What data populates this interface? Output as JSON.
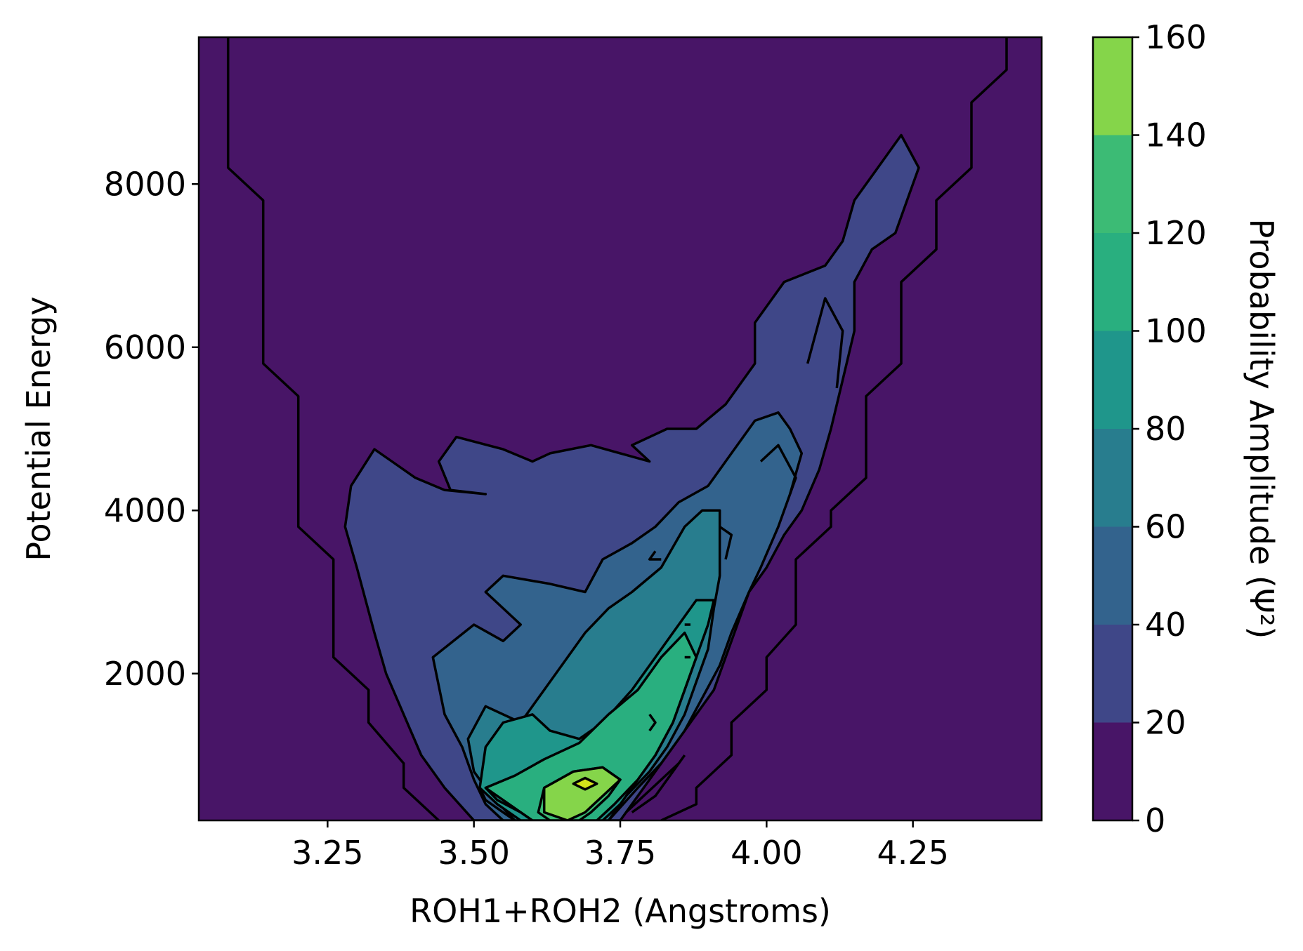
{
  "chart_data": {
    "type": "contourf",
    "title": "",
    "xlabel": "ROH1+ROH2 (Angstroms)",
    "ylabel": "Potential Energy",
    "xlim": [
      3.03,
      4.47
    ],
    "ylim": [
      200,
      9800
    ],
    "x_ticks": [
      3.25,
      3.5,
      3.75,
      4.0,
      4.25
    ],
    "x_tick_labels": [
      "3.25",
      "3.50",
      "3.75",
      "4.00",
      "4.25"
    ],
    "y_ticks": [
      2000,
      4000,
      6000,
      8000
    ],
    "y_tick_labels": [
      "2000",
      "4000",
      "6000",
      "8000"
    ],
    "colorbar": {
      "label": "Probability Amplitude (Ψ²)",
      "levels": [
        0,
        20,
        40,
        60,
        80,
        100,
        120,
        140,
        160
      ],
      "tick_labels": [
        "0",
        "20",
        "40",
        "60",
        "80",
        "100",
        "120",
        "140",
        "160"
      ],
      "colors": [
        "#481567",
        "#3f4788",
        "#33638d",
        "#287d8e",
        "#1f968b",
        "#29af7f",
        "#3cbb75",
        "#85d54a",
        "#d4e21a"
      ]
    },
    "contour_regions": [
      {
        "level": 0,
        "color": "#481567",
        "polygons": [
          [
            [
              3.03,
              200
            ],
            [
              4.47,
              200
            ],
            [
              4.47,
              9800
            ],
            [
              3.03,
              9800
            ]
          ]
        ]
      },
      {
        "level": 20,
        "color": "#3f4788",
        "polygons": [
          [
            [
              3.33,
              4750
            ],
            [
              3.36,
              4600
            ],
            [
              3.4,
              4400
            ],
            [
              3.45,
              4250
            ],
            [
              3.52,
              4200
            ],
            [
              3.46,
              4250
            ],
            [
              3.44,
              4600
            ],
            [
              3.47,
              4900
            ],
            [
              3.55,
              4750
            ],
            [
              3.6,
              4600
            ],
            [
              3.63,
              4700
            ],
            [
              3.7,
              4800
            ],
            [
              3.75,
              4700
            ],
            [
              3.8,
              4600
            ],
            [
              3.77,
              4800
            ],
            [
              3.83,
              5000
            ],
            [
              3.88,
              5000
            ],
            [
              3.93,
              5300
            ],
            [
              3.98,
              5800
            ],
            [
              3.98,
              6300
            ],
            [
              4.03,
              6800
            ],
            [
              4.1,
              7000
            ],
            [
              4.13,
              7300
            ],
            [
              4.15,
              7800
            ],
            [
              4.19,
              8200
            ],
            [
              4.23,
              8600
            ],
            [
              4.26,
              8200
            ],
            [
              4.24,
              7800
            ],
            [
              4.22,
              7400
            ],
            [
              4.18,
              7200
            ],
            [
              4.15,
              6800
            ],
            [
              4.15,
              6200
            ],
            [
              4.13,
              5600
            ],
            [
              4.11,
              5000
            ],
            [
              4.09,
              4500
            ],
            [
              4.06,
              4000
            ],
            [
              4.03,
              3700
            ],
            [
              4.0,
              3300
            ],
            [
              3.97,
              3000
            ],
            [
              3.95,
              2600
            ],
            [
              3.93,
              2200
            ],
            [
              3.91,
              1800
            ],
            [
              3.87,
              1400
            ],
            [
              3.83,
              1000
            ],
            [
              3.8,
              700
            ],
            [
              3.75,
              200
            ],
            [
              3.5,
              200
            ],
            [
              3.45,
              600
            ],
            [
              3.41,
              1000
            ],
            [
              3.38,
              1500
            ],
            [
              3.35,
              2000
            ],
            [
              3.33,
              2500
            ],
            [
              3.3,
              3300
            ],
            [
              3.28,
              3800
            ],
            [
              3.29,
              4300
            ]
          ]
        ]
      },
      {
        "level": 40,
        "color": "#33638d",
        "polygons": [
          [
            [
              3.43,
              2200
            ],
            [
              3.5,
              2600
            ],
            [
              3.55,
              2400
            ],
            [
              3.58,
              2600
            ],
            [
              3.52,
              3000
            ],
            [
              3.55,
              3200
            ],
            [
              3.63,
              3100
            ],
            [
              3.69,
              3000
            ],
            [
              3.72,
              3400
            ],
            [
              3.77,
              3600
            ],
            [
              3.81,
              3800
            ],
            [
              3.85,
              4100
            ],
            [
              3.9,
              4300
            ],
            [
              3.94,
              4700
            ],
            [
              3.98,
              5100
            ],
            [
              4.02,
              5200
            ],
            [
              4.04,
              5000
            ],
            [
              4.06,
              4700
            ],
            [
              4.04,
              4200
            ],
            [
              4.02,
              3800
            ],
            [
              3.99,
              3300
            ],
            [
              3.97,
              3000
            ],
            [
              3.94,
              2500
            ],
            [
              3.92,
              2100
            ],
            [
              3.89,
              1700
            ],
            [
              3.86,
              1300
            ],
            [
              3.82,
              900
            ],
            [
              3.78,
              600
            ],
            [
              3.73,
              200
            ],
            [
              3.55,
              200
            ],
            [
              3.52,
              400
            ],
            [
              3.5,
              700
            ],
            [
              3.48,
              1100
            ],
            [
              3.45,
              1500
            ]
          ]
        ]
      },
      {
        "level": 60,
        "color": "#287d8e",
        "polygons": [
          [
            [
              3.49,
              1200
            ],
            [
              3.52,
              1600
            ],
            [
              3.58,
              1400
            ],
            [
              3.62,
              1800
            ],
            [
              3.66,
              2200
            ],
            [
              3.69,
              2500
            ],
            [
              3.73,
              2800
            ],
            [
              3.77,
              3000
            ],
            [
              3.82,
              3300
            ],
            [
              3.86,
              3800
            ],
            [
              3.89,
              4000
            ],
            [
              3.92,
              4000
            ],
            [
              3.92,
              3600
            ],
            [
              3.92,
              3200
            ],
            [
              3.91,
              2800
            ],
            [
              3.9,
              2300
            ],
            [
              3.88,
              1900
            ],
            [
              3.86,
              1500
            ],
            [
              3.83,
              1100
            ],
            [
              3.8,
              800
            ],
            [
              3.76,
              500
            ],
            [
              3.73,
              200
            ],
            [
              3.57,
              200
            ],
            [
              3.53,
              500
            ],
            [
              3.5,
              800
            ]
          ]
        ]
      },
      {
        "level": 80,
        "color": "#1f968b",
        "polygons": [
          [
            [
              3.51,
              600
            ],
            [
              3.52,
              1100
            ],
            [
              3.55,
              1400
            ],
            [
              3.6,
              1500
            ],
            [
              3.63,
              1300
            ],
            [
              3.68,
              1200
            ],
            [
              3.72,
              1400
            ],
            [
              3.77,
              1800
            ],
            [
              3.81,
              2200
            ],
            [
              3.85,
              2600
            ],
            [
              3.88,
              2900
            ],
            [
              3.91,
              2900
            ],
            [
              3.9,
              2600
            ],
            [
              3.88,
              2200
            ],
            [
              3.86,
              1800
            ],
            [
              3.84,
              1400
            ],
            [
              3.81,
              1000
            ],
            [
              3.78,
              700
            ],
            [
              3.75,
              400
            ],
            [
              3.72,
              200
            ],
            [
              3.58,
              200
            ],
            [
              3.54,
              400
            ]
          ]
        ]
      },
      {
        "level": 100,
        "color": "#29af7f",
        "polygons": [
          [
            [
              3.52,
              600
            ],
            [
              3.57,
              750
            ],
            [
              3.62,
              950
            ],
            [
              3.68,
              1150
            ],
            [
              3.73,
              1500
            ],
            [
              3.78,
              1800
            ],
            [
              3.82,
              2200
            ],
            [
              3.86,
              2500
            ],
            [
              3.88,
              2200
            ],
            [
              3.86,
              1800
            ],
            [
              3.84,
              1400
            ],
            [
              3.81,
              1000
            ],
            [
              3.78,
              700
            ],
            [
              3.74,
              400
            ],
            [
              3.71,
              200
            ],
            [
              3.6,
              200
            ],
            [
              3.56,
              400
            ]
          ]
        ]
      },
      {
        "level": 120,
        "color": "#3cbb75",
        "polygons": [
          [
            [
              3.61,
              300
            ],
            [
              3.62,
              600
            ],
            [
              3.67,
              800
            ],
            [
              3.72,
              850
            ],
            [
              3.75,
              700
            ],
            [
              3.73,
              500
            ],
            [
              3.7,
              300
            ],
            [
              3.68,
              200
            ],
            [
              3.63,
              200
            ]
          ]
        ]
      },
      {
        "level": 140,
        "color": "#85d54a",
        "polygons": [
          [
            [
              3.62,
              300
            ],
            [
              3.62,
              600
            ],
            [
              3.67,
              800
            ],
            [
              3.72,
              850
            ],
            [
              3.75,
              700
            ],
            [
              3.72,
              500
            ],
            [
              3.69,
              300
            ],
            [
              3.66,
              200
            ]
          ]
        ]
      },
      {
        "level": 160,
        "color": "#d4e21a",
        "polygons": [
          [
            [
              3.67,
              650
            ],
            [
              3.69,
              720
            ],
            [
              3.71,
              650
            ],
            [
              3.69,
              580
            ]
          ]
        ]
      }
    ],
    "contour_lines": [
      [
        [
          3.08,
          9800
        ],
        [
          3.08,
          8200
        ],
        [
          3.14,
          7800
        ],
        [
          3.14,
          5800
        ],
        [
          3.2,
          5400
        ],
        [
          3.2,
          3800
        ],
        [
          3.26,
          3400
        ],
        [
          3.26,
          2200
        ],
        [
          3.32,
          1800
        ],
        [
          3.32,
          1400
        ],
        [
          3.38,
          900
        ],
        [
          3.38,
          600
        ],
        [
          3.44,
          200
        ]
      ],
      [
        [
          4.41,
          9800
        ],
        [
          4.41,
          9400
        ],
        [
          4.35,
          9000
        ],
        [
          4.35,
          8200
        ],
        [
          4.29,
          7800
        ],
        [
          4.29,
          7200
        ],
        [
          4.23,
          6800
        ],
        [
          4.23,
          5800
        ],
        [
          4.17,
          5400
        ],
        [
          4.17,
          4400
        ],
        [
          4.11,
          4000
        ],
        [
          4.11,
          3800
        ],
        [
          4.05,
          3400
        ],
        [
          4.05,
          2600
        ],
        [
          4.0,
          2200
        ],
        [
          4.0,
          1800
        ],
        [
          3.94,
          1400
        ],
        [
          3.94,
          1000
        ],
        [
          3.88,
          600
        ],
        [
          3.88,
          400
        ],
        [
          3.82,
          200
        ]
      ],
      [
        [
          4.07,
          5800
        ],
        [
          4.1,
          6600
        ],
        [
          4.13,
          6200
        ],
        [
          4.12,
          5500
        ]
      ],
      [
        [
          3.99,
          4600
        ],
        [
          4.02,
          4800
        ],
        [
          4.05,
          4400
        ],
        [
          4.04,
          4200
        ]
      ],
      [
        [
          3.92,
          3800
        ],
        [
          3.94,
          3700
        ],
        [
          3.93,
          3400
        ]
      ],
      [
        [
          3.81,
          3500
        ],
        [
          3.8,
          3400
        ],
        [
          3.82,
          3400
        ]
      ],
      [
        [
          3.86,
          2600
        ],
        [
          3.87,
          2600
        ]
      ],
      [
        [
          3.8,
          1500
        ],
        [
          3.81,
          1400
        ],
        [
          3.8,
          1300
        ]
      ],
      [
        [
          3.86,
          2200
        ],
        [
          3.87,
          2200
        ]
      ],
      [
        [
          3.51,
          600
        ],
        [
          3.52,
          450
        ],
        [
          3.55,
          300
        ],
        [
          3.57,
          200
        ]
      ],
      [
        [
          3.52,
          600
        ],
        [
          3.54,
          450
        ],
        [
          3.58,
          300
        ],
        [
          3.6,
          200
        ]
      ],
      [
        [
          3.76,
          300
        ],
        [
          3.79,
          500
        ],
        [
          3.82,
          700
        ],
        [
          3.85,
          900
        ]
      ],
      [
        [
          3.77,
          300
        ],
        [
          3.81,
          500
        ],
        [
          3.84,
          800
        ],
        [
          3.86,
          1000
        ]
      ]
    ]
  }
}
